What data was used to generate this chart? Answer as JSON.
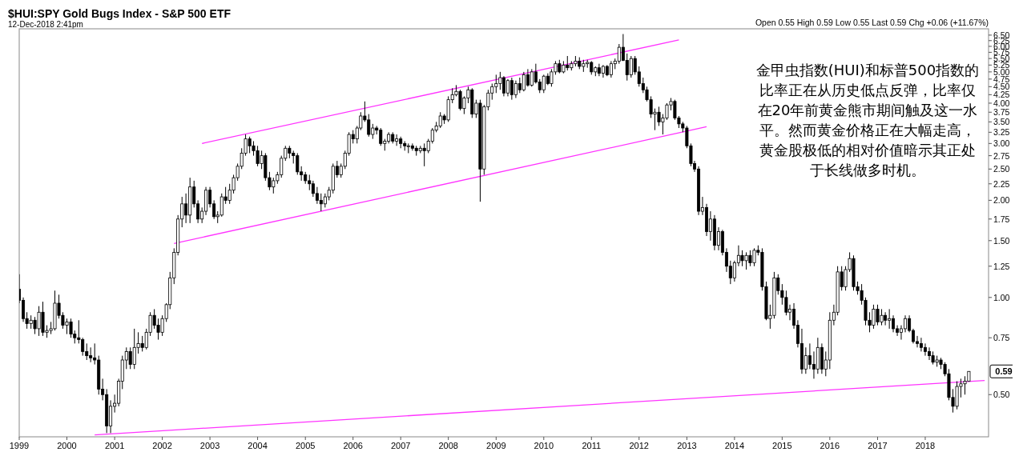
{
  "chart_data": {
    "type": "candlestick",
    "title": "$HUI:SPY Gold Bugs Index - S&P 500 ETF",
    "subtitle": "12-Dec-2018 2:41pm",
    "annotations": [
      "金甲虫指数(HUI)和标普500指数的比率正在从历史低点反弹，比率仅在20年前黄金熊市期间触及这一水平。然而黄金价格正在大幅走高，黄金股极低的相对价值暗示其正处于长线做多时机。",
      "Open 0.55  High 0.59  Low 0.55  Last 0.59  Chg +0.06 (+11.67%)",
      "0.59"
    ],
    "color": "#000000",
    "log": true,
    "xlim": [
      "1999-01-01",
      "2019-05-01"
    ],
    "xticks": [
      "1999",
      "2000",
      "2001",
      "2002",
      "2003",
      "2004",
      "2005",
      "2006",
      "2007",
      "2008",
      "2009",
      "2010",
      "2011",
      "2012",
      "2013",
      "2014",
      "2015",
      "2016",
      "2017",
      "2018"
    ],
    "ylim": [
      0.37,
      6.8
    ],
    "yticks": [
      {
        "value": 0.5,
        "label": "0.50"
      },
      {
        "value": 0.75,
        "label": "0.75"
      },
      {
        "value": 1.0,
        "label": "1.00"
      },
      {
        "value": 1.25,
        "label": "1.25"
      },
      {
        "value": 1.5,
        "label": "1.50"
      },
      {
        "value": 1.75,
        "label": "1.75"
      },
      {
        "value": 2.0,
        "label": "2.00"
      },
      {
        "value": 2.25,
        "label": "2.25"
      },
      {
        "value": 2.5,
        "label": "2.50"
      },
      {
        "value": 2.75,
        "label": "2.75"
      },
      {
        "value": 3.0,
        "label": "3.00"
      },
      {
        "value": 3.25,
        "label": "3.25"
      },
      {
        "value": 3.5,
        "label": "3.50"
      },
      {
        "value": 3.75,
        "label": "3.75"
      },
      {
        "value": 4.0,
        "label": "4.00"
      },
      {
        "value": 4.25,
        "label": "4.25"
      },
      {
        "value": 4.5,
        "label": "4.50"
      },
      {
        "value": 4.75,
        "label": "4.75"
      },
      {
        "value": 5.0,
        "label": "5.00"
      },
      {
        "value": 5.25,
        "label": "5.25"
      },
      {
        "value": 5.5,
        "label": "5.50"
      },
      {
        "value": 5.75,
        "label": "5.75"
      },
      {
        "value": 6.0,
        "label": "6.00"
      },
      {
        "value": 6.25,
        "label": "6.25"
      },
      {
        "value": 6.5,
        "label": "6.50"
      }
    ],
    "x": [
      "1999-01",
      "1999-02",
      "1999-03",
      "1999-04",
      "1999-05",
      "1999-06",
      "1999-07",
      "1999-08",
      "1999-09",
      "1999-10",
      "1999-11",
      "1999-12",
      "2000-01",
      "2000-02",
      "2000-03",
      "2000-04",
      "2000-05",
      "2000-06",
      "2000-07",
      "2000-08",
      "2000-09",
      "2000-10",
      "2000-11",
      "2000-12",
      "2001-01",
      "2001-02",
      "2001-03",
      "2001-04",
      "2001-05",
      "2001-06",
      "2001-07",
      "2001-08",
      "2001-09",
      "2001-10",
      "2001-11",
      "2001-12",
      "2002-01",
      "2002-02",
      "2002-03",
      "2002-04",
      "2002-05",
      "2002-06",
      "2002-07",
      "2002-08",
      "2002-09",
      "2002-10",
      "2002-11",
      "2002-12",
      "2003-01",
      "2003-02",
      "2003-03",
      "2003-04",
      "2003-05",
      "2003-06",
      "2003-07",
      "2003-08",
      "2003-09",
      "2003-10",
      "2003-11",
      "2003-12",
      "2004-01",
      "2004-02",
      "2004-03",
      "2004-04",
      "2004-05",
      "2004-06",
      "2004-07",
      "2004-08",
      "2004-09",
      "2004-10",
      "2004-11",
      "2004-12",
      "2005-01",
      "2005-02",
      "2005-03",
      "2005-04",
      "2005-05",
      "2005-06",
      "2005-07",
      "2005-08",
      "2005-09",
      "2005-10",
      "2005-11",
      "2005-12",
      "2006-01",
      "2006-02",
      "2006-03",
      "2006-04",
      "2006-05",
      "2006-06",
      "2006-07",
      "2006-08",
      "2006-09",
      "2006-10",
      "2006-11",
      "2006-12",
      "2007-01",
      "2007-02",
      "2007-03",
      "2007-04",
      "2007-05",
      "2007-06",
      "2007-07",
      "2007-08",
      "2007-09",
      "2007-10",
      "2007-11",
      "2007-12",
      "2008-01",
      "2008-02",
      "2008-03",
      "2008-04",
      "2008-05",
      "2008-06",
      "2008-07",
      "2008-08",
      "2008-09",
      "2008-10",
      "2008-11",
      "2008-12",
      "2009-01",
      "2009-02",
      "2009-03",
      "2009-04",
      "2009-05",
      "2009-06",
      "2009-07",
      "2009-08",
      "2009-09",
      "2009-10",
      "2009-11",
      "2009-12",
      "2010-01",
      "2010-02",
      "2010-03",
      "2010-04",
      "2010-05",
      "2010-06",
      "2010-07",
      "2010-08",
      "2010-09",
      "2010-10",
      "2010-11",
      "2010-12",
      "2011-01",
      "2011-02",
      "2011-03",
      "2011-04",
      "2011-05",
      "2011-06",
      "2011-07",
      "2011-08",
      "2011-09",
      "2011-10",
      "2011-11",
      "2011-12",
      "2012-01",
      "2012-02",
      "2012-03",
      "2012-04",
      "2012-05",
      "2012-06",
      "2012-07",
      "2012-08",
      "2012-09",
      "2012-10",
      "2012-11",
      "2012-12",
      "2013-01",
      "2013-02",
      "2013-03",
      "2013-04",
      "2013-05",
      "2013-06",
      "2013-07",
      "2013-08",
      "2013-09",
      "2013-10",
      "2013-11",
      "2013-12",
      "2014-01",
      "2014-02",
      "2014-03",
      "2014-04",
      "2014-05",
      "2014-06",
      "2014-07",
      "2014-08",
      "2014-09",
      "2014-10",
      "2014-11",
      "2014-12",
      "2015-01",
      "2015-02",
      "2015-03",
      "2015-04",
      "2015-05",
      "2015-06",
      "2015-07",
      "2015-08",
      "2015-09",
      "2015-10",
      "2015-11",
      "2015-12",
      "2016-01",
      "2016-02",
      "2016-03",
      "2016-04",
      "2016-05",
      "2016-06",
      "2016-07",
      "2016-08",
      "2016-09",
      "2016-10",
      "2016-11",
      "2016-12",
      "2017-01",
      "2017-02",
      "2017-03",
      "2017-04",
      "2017-05",
      "2017-06",
      "2017-07",
      "2017-08",
      "2017-09",
      "2017-10",
      "2017-11",
      "2017-12",
      "2018-01",
      "2018-02",
      "2018-03",
      "2018-04",
      "2018-05",
      "2018-06",
      "2018-07",
      "2018-08",
      "2018-09",
      "2018-10",
      "2018-11",
      "2018-12"
    ],
    "ohlc": [
      [
        1.06,
        1.18,
        0.96,
        0.98
      ],
      [
        0.98,
        1.0,
        0.84,
        0.86
      ],
      [
        0.86,
        0.9,
        0.8,
        0.83
      ],
      [
        0.83,
        0.88,
        0.8,
        0.85
      ],
      [
        0.85,
        0.87,
        0.77,
        0.8
      ],
      [
        0.8,
        0.94,
        0.76,
        0.9
      ],
      [
        0.9,
        0.97,
        0.76,
        0.78
      ],
      [
        0.78,
        0.82,
        0.75,
        0.79
      ],
      [
        0.79,
        0.84,
        0.77,
        0.8
      ],
      [
        0.8,
        1.05,
        0.79,
        0.96
      ],
      [
        0.96,
        1.02,
        0.86,
        0.88
      ],
      [
        0.88,
        0.9,
        0.8,
        0.82
      ],
      [
        0.82,
        0.86,
        0.77,
        0.84
      ],
      [
        0.84,
        0.86,
        0.75,
        0.77
      ],
      [
        0.77,
        0.79,
        0.72,
        0.75
      ],
      [
        0.75,
        0.85,
        0.72,
        0.74
      ],
      [
        0.74,
        0.75,
        0.66,
        0.68
      ],
      [
        0.68,
        0.72,
        0.64,
        0.66
      ],
      [
        0.66,
        0.7,
        0.63,
        0.65
      ],
      [
        0.65,
        0.72,
        0.62,
        0.64
      ],
      [
        0.64,
        0.66,
        0.5,
        0.52
      ],
      [
        0.52,
        0.56,
        0.48,
        0.5
      ],
      [
        0.5,
        0.52,
        0.38,
        0.4
      ],
      [
        0.4,
        0.48,
        0.38,
        0.46
      ],
      [
        0.46,
        0.5,
        0.44,
        0.47
      ],
      [
        0.47,
        0.56,
        0.46,
        0.55
      ],
      [
        0.55,
        0.66,
        0.52,
        0.64
      ],
      [
        0.64,
        0.7,
        0.6,
        0.68
      ],
      [
        0.68,
        0.7,
        0.6,
        0.62
      ],
      [
        0.62,
        0.8,
        0.6,
        0.7
      ],
      [
        0.7,
        0.78,
        0.67,
        0.72
      ],
      [
        0.72,
        0.76,
        0.68,
        0.7
      ],
      [
        0.7,
        0.8,
        0.69,
        0.78
      ],
      [
        0.78,
        0.9,
        0.76,
        0.88
      ],
      [
        0.88,
        0.92,
        0.8,
        0.82
      ],
      [
        0.82,
        0.86,
        0.74,
        0.78
      ],
      [
        0.78,
        0.88,
        0.76,
        0.86
      ],
      [
        0.86,
        0.96,
        0.84,
        0.95
      ],
      [
        0.95,
        1.2,
        0.92,
        1.15
      ],
      [
        1.15,
        1.42,
        1.1,
        1.38
      ],
      [
        1.38,
        1.8,
        1.35,
        1.75
      ],
      [
        1.75,
        2.05,
        1.65,
        1.95
      ],
      [
        1.95,
        2.1,
        1.7,
        1.8
      ],
      [
        1.8,
        2.35,
        1.7,
        2.2
      ],
      [
        2.2,
        2.3,
        1.9,
        1.95
      ],
      [
        1.95,
        2.0,
        1.7,
        1.75
      ],
      [
        1.75,
        1.9,
        1.7,
        1.85
      ],
      [
        1.85,
        2.2,
        1.8,
        2.15
      ],
      [
        2.15,
        2.2,
        1.9,
        1.95
      ],
      [
        1.95,
        2.0,
        1.75,
        1.78
      ],
      [
        1.78,
        1.85,
        1.7,
        1.8
      ],
      [
        1.8,
        2.1,
        1.78,
        2.05
      ],
      [
        2.05,
        2.2,
        1.95,
        2.0
      ],
      [
        2.0,
        2.25,
        1.95,
        2.15
      ],
      [
        2.15,
        2.4,
        2.1,
        2.35
      ],
      [
        2.35,
        2.6,
        2.3,
        2.55
      ],
      [
        2.55,
        2.9,
        2.5,
        2.8
      ],
      [
        2.8,
        3.2,
        2.75,
        3.1
      ],
      [
        3.1,
        3.15,
        2.8,
        2.95
      ],
      [
        2.95,
        3.05,
        2.75,
        2.85
      ],
      [
        2.85,
        2.95,
        2.55,
        2.6
      ],
      [
        2.6,
        2.85,
        2.5,
        2.75
      ],
      [
        2.75,
        2.8,
        2.3,
        2.35
      ],
      [
        2.35,
        2.45,
        2.15,
        2.2
      ],
      [
        2.2,
        2.35,
        2.1,
        2.3
      ],
      [
        2.3,
        2.45,
        2.25,
        2.4
      ],
      [
        2.4,
        2.75,
        2.35,
        2.7
      ],
      [
        2.7,
        2.95,
        2.65,
        2.9
      ],
      [
        2.9,
        2.95,
        2.7,
        2.8
      ],
      [
        2.8,
        2.85,
        2.6,
        2.75
      ],
      [
        2.75,
        2.8,
        2.4,
        2.45
      ],
      [
        2.45,
        2.55,
        2.3,
        2.4
      ],
      [
        2.4,
        2.45,
        2.25,
        2.3
      ],
      [
        2.3,
        2.4,
        2.15,
        2.25
      ],
      [
        2.25,
        2.3,
        2.05,
        2.1
      ],
      [
        2.1,
        2.2,
        1.95,
        2.0
      ],
      [
        2.0,
        2.1,
        1.85,
        1.95
      ],
      [
        1.95,
        2.1,
        1.9,
        2.05
      ],
      [
        2.05,
        2.2,
        2.0,
        2.15
      ],
      [
        2.15,
        2.6,
        2.1,
        2.55
      ],
      [
        2.55,
        2.65,
        2.35,
        2.4
      ],
      [
        2.4,
        2.6,
        2.35,
        2.55
      ],
      [
        2.55,
        2.85,
        2.5,
        2.8
      ],
      [
        2.8,
        3.25,
        2.75,
        3.2
      ],
      [
        3.2,
        3.3,
        3.0,
        3.1
      ],
      [
        3.1,
        3.4,
        3.0,
        3.35
      ],
      [
        3.35,
        3.75,
        3.3,
        3.65
      ],
      [
        3.65,
        4.05,
        3.5,
        3.55
      ],
      [
        3.55,
        3.7,
        3.15,
        3.2
      ],
      [
        3.2,
        3.45,
        3.1,
        3.35
      ],
      [
        3.35,
        3.4,
        3.2,
        3.3
      ],
      [
        3.3,
        3.35,
        2.95,
        3.0
      ],
      [
        3.0,
        3.1,
        2.85,
        3.05
      ],
      [
        3.05,
        3.25,
        3.0,
        3.2
      ],
      [
        3.2,
        3.25,
        3.0,
        3.05
      ],
      [
        3.05,
        3.2,
        2.95,
        3.1
      ],
      [
        3.1,
        3.15,
        2.9,
        3.0
      ],
      [
        3.0,
        3.05,
        2.85,
        2.95
      ],
      [
        2.95,
        3.0,
        2.8,
        2.95
      ],
      [
        2.95,
        3.0,
        2.85,
        2.9
      ],
      [
        2.9,
        2.95,
        2.75,
        2.85
      ],
      [
        2.85,
        2.95,
        2.8,
        2.9
      ],
      [
        2.9,
        3.0,
        2.55,
        2.85
      ],
      [
        2.85,
        3.1,
        2.8,
        3.05
      ],
      [
        3.05,
        3.35,
        3.0,
        3.3
      ],
      [
        3.3,
        3.5,
        3.25,
        3.4
      ],
      [
        3.4,
        3.75,
        3.35,
        3.65
      ],
      [
        3.65,
        3.7,
        3.45,
        3.55
      ],
      [
        3.55,
        4.2,
        3.5,
        4.1
      ],
      [
        4.1,
        4.45,
        4.0,
        4.25
      ],
      [
        4.25,
        4.55,
        4.2,
        4.35
      ],
      [
        4.35,
        4.4,
        3.8,
        3.85
      ],
      [
        3.85,
        4.2,
        3.7,
        4.15
      ],
      [
        4.15,
        4.5,
        4.0,
        4.4
      ],
      [
        4.4,
        4.45,
        3.6,
        3.7
      ],
      [
        3.7,
        4.1,
        3.6,
        4.0
      ],
      [
        4.0,
        4.1,
        1.98,
        2.5
      ],
      [
        2.5,
        3.95,
        2.4,
        3.9
      ],
      [
        3.9,
        4.4,
        3.8,
        4.3
      ],
      [
        4.3,
        4.6,
        4.1,
        4.5
      ],
      [
        4.5,
        4.9,
        4.3,
        4.6
      ],
      [
        4.6,
        5.0,
        4.4,
        4.8
      ],
      [
        4.8,
        4.85,
        4.2,
        4.3
      ],
      [
        4.3,
        4.75,
        4.2,
        4.7
      ],
      [
        4.7,
        4.8,
        4.1,
        4.25
      ],
      [
        4.25,
        4.7,
        4.15,
        4.6
      ],
      [
        4.6,
        4.8,
        4.3,
        4.4
      ],
      [
        4.4,
        5.0,
        4.35,
        4.9
      ],
      [
        4.9,
        5.1,
        4.5,
        4.55
      ],
      [
        4.55,
        5.1,
        4.5,
        5.0
      ],
      [
        5.0,
        5.3,
        4.6,
        4.65
      ],
      [
        4.65,
        4.75,
        4.3,
        4.4
      ],
      [
        4.4,
        4.9,
        4.3,
        4.85
      ],
      [
        4.85,
        4.95,
        4.55,
        4.6
      ],
      [
        4.6,
        5.1,
        4.5,
        5.0
      ],
      [
        5.0,
        5.4,
        4.9,
        5.3
      ],
      [
        5.3,
        5.45,
        4.95,
        5.0
      ],
      [
        5.0,
        5.4,
        4.95,
        5.25
      ],
      [
        5.25,
        5.6,
        5.05,
        5.15
      ],
      [
        5.15,
        5.4,
        5.05,
        5.3
      ],
      [
        5.3,
        5.6,
        5.2,
        5.4
      ],
      [
        5.4,
        5.55,
        5.1,
        5.2
      ],
      [
        5.2,
        5.45,
        5.0,
        5.3
      ],
      [
        5.3,
        5.45,
        5.15,
        5.35
      ],
      [
        5.35,
        5.4,
        4.9,
        5.0
      ],
      [
        5.0,
        5.2,
        4.85,
        5.15
      ],
      [
        5.15,
        5.3,
        4.85,
        4.95
      ],
      [
        4.95,
        5.25,
        4.8,
        5.2
      ],
      [
        5.2,
        5.25,
        4.85,
        4.9
      ],
      [
        4.9,
        5.4,
        4.8,
        5.3
      ],
      [
        5.3,
        5.5,
        5.1,
        5.4
      ],
      [
        5.4,
        6.1,
        5.3,
        5.96
      ],
      [
        5.96,
        6.55,
        5.4,
        5.43
      ],
      [
        5.43,
        5.7,
        4.7,
        4.9
      ],
      [
        4.9,
        5.6,
        4.8,
        5.5
      ],
      [
        5.5,
        5.6,
        4.9,
        5.0
      ],
      [
        5.0,
        5.2,
        4.5,
        4.6
      ],
      [
        4.6,
        4.8,
        4.3,
        4.4
      ],
      [
        4.4,
        4.5,
        4.05,
        4.1
      ],
      [
        4.1,
        4.2,
        3.6,
        3.7
      ],
      [
        3.7,
        3.85,
        3.3,
        3.75
      ],
      [
        3.75,
        3.9,
        3.4,
        3.5
      ],
      [
        3.5,
        3.7,
        3.2,
        3.6
      ],
      [
        3.6,
        4.0,
        3.55,
        3.95
      ],
      [
        3.95,
        4.15,
        3.8,
        4.05
      ],
      [
        4.05,
        4.1,
        3.55,
        3.6
      ],
      [
        3.6,
        3.65,
        3.35,
        3.45
      ],
      [
        3.45,
        3.5,
        3.25,
        3.35
      ],
      [
        3.35,
        3.4,
        2.9,
        2.95
      ],
      [
        2.95,
        3.0,
        2.55,
        2.6
      ],
      [
        2.6,
        2.65,
        2.45,
        2.5
      ],
      [
        2.5,
        2.55,
        1.8,
        1.85
      ],
      [
        1.85,
        2.05,
        1.8,
        1.9
      ],
      [
        1.9,
        1.95,
        1.55,
        1.6
      ],
      [
        1.6,
        1.85,
        1.5,
        1.75
      ],
      [
        1.75,
        1.8,
        1.4,
        1.45
      ],
      [
        1.45,
        1.65,
        1.4,
        1.6
      ],
      [
        1.6,
        1.62,
        1.35,
        1.38
      ],
      [
        1.38,
        1.42,
        1.2,
        1.25
      ],
      [
        1.25,
        1.3,
        1.1,
        1.15
      ],
      [
        1.15,
        1.3,
        1.12,
        1.28
      ],
      [
        1.28,
        1.45,
        1.25,
        1.35
      ],
      [
        1.35,
        1.4,
        1.25,
        1.3
      ],
      [
        1.3,
        1.38,
        1.22,
        1.35
      ],
      [
        1.35,
        1.4,
        1.25,
        1.28
      ],
      [
        1.28,
        1.42,
        1.25,
        1.4
      ],
      [
        1.4,
        1.45,
        1.35,
        1.38
      ],
      [
        1.38,
        1.42,
        1.05,
        1.08
      ],
      [
        1.08,
        1.12,
        0.85,
        0.86
      ],
      [
        0.86,
        0.95,
        0.8,
        0.88
      ],
      [
        0.88,
        1.2,
        0.86,
        1.15
      ],
      [
        1.15,
        1.18,
        1.02,
        1.05
      ],
      [
        1.05,
        1.1,
        0.95,
        1.0
      ],
      [
        1.0,
        1.05,
        0.88,
        0.9
      ],
      [
        0.9,
        0.95,
        0.85,
        0.92
      ],
      [
        0.92,
        0.96,
        0.8,
        0.82
      ],
      [
        0.82,
        0.85,
        0.7,
        0.72
      ],
      [
        0.72,
        0.8,
        0.58,
        0.6
      ],
      [
        0.6,
        0.7,
        0.58,
        0.66
      ],
      [
        0.66,
        0.72,
        0.6,
        0.62
      ],
      [
        0.62,
        0.68,
        0.56,
        0.6
      ],
      [
        0.6,
        0.75,
        0.58,
        0.7
      ],
      [
        0.7,
        0.72,
        0.58,
        0.6
      ],
      [
        0.6,
        0.68,
        0.57,
        0.64
      ],
      [
        0.64,
        0.9,
        0.6,
        0.85
      ],
      [
        0.85,
        0.95,
        0.82,
        0.9
      ],
      [
        0.9,
        1.25,
        0.88,
        1.2
      ],
      [
        1.2,
        1.25,
        1.05,
        1.08
      ],
      [
        1.08,
        1.25,
        1.05,
        1.22
      ],
      [
        1.22,
        1.38,
        1.2,
        1.32
      ],
      [
        1.32,
        1.35,
        1.05,
        1.08
      ],
      [
        1.08,
        1.12,
        1.02,
        1.05
      ],
      [
        1.05,
        1.1,
        0.95,
        0.98
      ],
      [
        0.98,
        1.0,
        0.82,
        0.85
      ],
      [
        0.85,
        0.9,
        0.78,
        0.82
      ],
      [
        0.82,
        0.95,
        0.8,
        0.92
      ],
      [
        0.92,
        0.95,
        0.82,
        0.84
      ],
      [
        0.84,
        0.92,
        0.82,
        0.88
      ],
      [
        0.88,
        0.9,
        0.82,
        0.85
      ],
      [
        0.85,
        0.92,
        0.8,
        0.86
      ],
      [
        0.86,
        0.88,
        0.78,
        0.8
      ],
      [
        0.8,
        0.82,
        0.76,
        0.78
      ],
      [
        0.78,
        0.82,
        0.74,
        0.8
      ],
      [
        0.8,
        0.88,
        0.78,
        0.86
      ],
      [
        0.86,
        0.88,
        0.78,
        0.79
      ],
      [
        0.79,
        0.8,
        0.72,
        0.73
      ],
      [
        0.73,
        0.76,
        0.7,
        0.72
      ],
      [
        0.72,
        0.75,
        0.68,
        0.7
      ],
      [
        0.7,
        0.72,
        0.66,
        0.68
      ],
      [
        0.68,
        0.7,
        0.64,
        0.66
      ],
      [
        0.66,
        0.68,
        0.62,
        0.63
      ],
      [
        0.63,
        0.66,
        0.61,
        0.64
      ],
      [
        0.64,
        0.65,
        0.6,
        0.62
      ],
      [
        0.62,
        0.63,
        0.57,
        0.58
      ],
      [
        0.58,
        0.6,
        0.48,
        0.49
      ],
      [
        0.49,
        0.52,
        0.44,
        0.46
      ],
      [
        0.46,
        0.55,
        0.45,
        0.53
      ],
      [
        0.53,
        0.56,
        0.49,
        0.54
      ],
      [
        0.54,
        0.57,
        0.5,
        0.55
      ],
      [
        0.55,
        0.59,
        0.55,
        0.59
      ]
    ],
    "series": [
      {
        "type": "line",
        "color": "#ff33ff",
        "x": [
          "2002-11",
          "2012-11"
        ],
        "values": [
          3.0,
          6.28
        ]
      },
      {
        "type": "line",
        "color": "#ff33ff",
        "x": [
          "2002-04",
          "2013-06"
        ],
        "values": [
          1.47,
          3.38
        ]
      },
      {
        "type": "line",
        "color": "#ff33ff",
        "x": [
          "2000-08",
          "2019-04"
        ],
        "values": [
          0.375,
          0.553
        ]
      }
    ]
  }
}
